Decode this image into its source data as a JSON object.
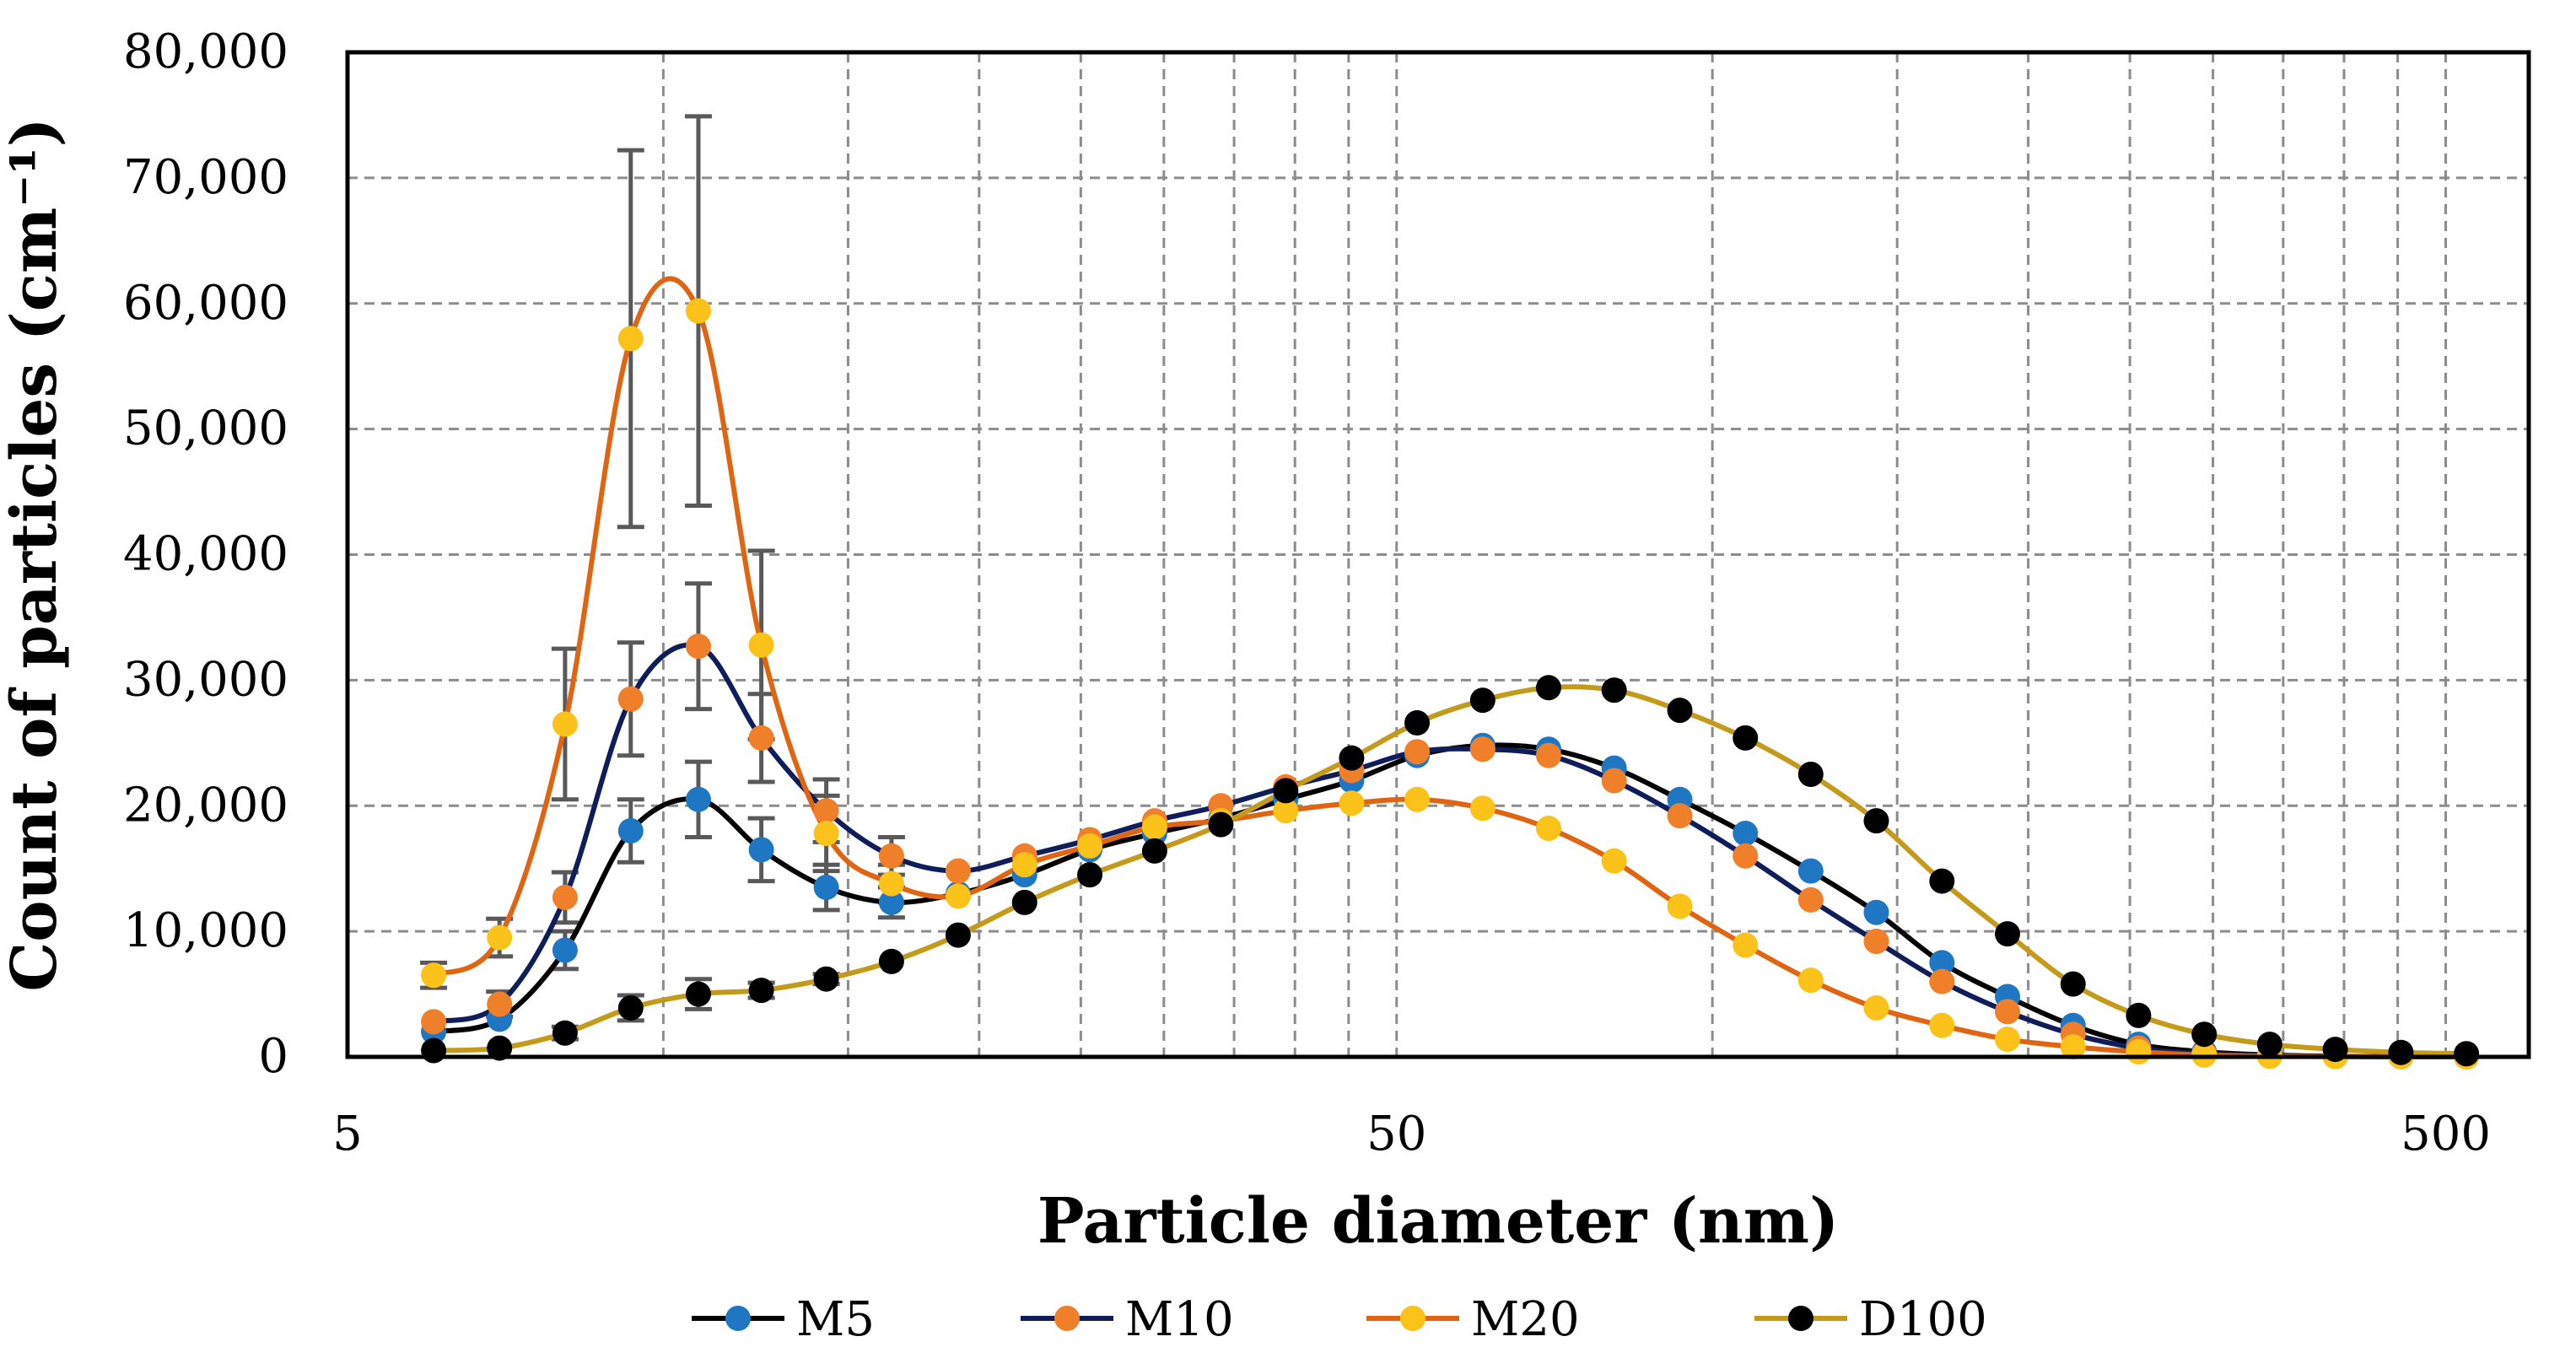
{
  "chart_data": {
    "type": "line",
    "title": "",
    "xlabel": "Particle diameter (nm)",
    "ylabel": "Count of particles (cm⁻¹)",
    "xscale": "log",
    "xlim": [
      5,
      600
    ],
    "ylim": [
      0,
      80000
    ],
    "x_ticks": [
      5,
      50,
      500
    ],
    "x_tick_labels": [
      "5",
      "50",
      "500"
    ],
    "y_ticks": [
      0,
      10000,
      20000,
      30000,
      40000,
      50000,
      60000,
      70000,
      80000
    ],
    "y_tick_labels": [
      "0",
      "10,000",
      "20,000",
      "30,000",
      "40,000",
      "50,000",
      "60,000",
      "70,000",
      "80,000"
    ],
    "grid": true,
    "legend_position": "bottom",
    "x": [
      6.04,
      6.98,
      8.06,
      9.31,
      10.8,
      12.4,
      14.3,
      16.5,
      19.1,
      22.1,
      25.5,
      29.4,
      34.0,
      39.2,
      45.3,
      52.3,
      60.4,
      69.8,
      80.6,
      93.1,
      107.5,
      124.1,
      143.3,
      165.5,
      191.1,
      220.7,
      254.8,
      294.3,
      339.8,
      392.4,
      453.2,
      523.3
    ],
    "series": [
      {
        "name": "M5",
        "color": "#1f77c4",
        "line_color": "#000000",
        "values": [
          2000,
          3000,
          8500,
          18000,
          20500,
          16500,
          13500,
          12300,
          13000,
          14500,
          16500,
          17800,
          19000,
          20500,
          22000,
          24000,
          24800,
          24500,
          23000,
          20500,
          17800,
          14800,
          11500,
          7500,
          4800,
          2500,
          1000,
          400,
          150,
          50,
          20,
          0
        ],
        "error": [
          null,
          null,
          1500,
          2500,
          3000,
          2500,
          1800,
          1200,
          null,
          null,
          null,
          null,
          null,
          null,
          null,
          null,
          null,
          null,
          null,
          null,
          null,
          null,
          null,
          null,
          null,
          null,
          null,
          null,
          null,
          null,
          null,
          null
        ]
      },
      {
        "name": "M10",
        "color": "#f07f2a",
        "line_color": "#0f1e5a",
        "values": [
          2800,
          4200,
          12700,
          28500,
          32700,
          25400,
          19600,
          16000,
          14800,
          16000,
          17300,
          18800,
          20000,
          21500,
          22800,
          24300,
          24500,
          24000,
          22000,
          19200,
          16000,
          12500,
          9200,
          6000,
          3600,
          1800,
          700,
          250,
          80,
          30,
          10,
          0
        ],
        "error": [
          null,
          1000,
          2000,
          4500,
          5000,
          3500,
          2500,
          1500,
          null,
          null,
          null,
          null,
          null,
          null,
          null,
          null,
          null,
          null,
          null,
          null,
          null,
          null,
          null,
          null,
          null,
          null,
          null,
          null,
          null,
          null,
          null,
          null
        ]
      },
      {
        "name": "M20",
        "color": "#fbc21a",
        "line_color": "#e06512",
        "values": [
          6500,
          9500,
          26500,
          57200,
          59400,
          32800,
          17800,
          13800,
          12800,
          15300,
          16800,
          18300,
          18800,
          19600,
          20200,
          20500,
          19800,
          18200,
          15600,
          12000,
          8900,
          6100,
          3900,
          2500,
          1400,
          800,
          400,
          150,
          50,
          20,
          10,
          0
        ],
        "error": [
          1000,
          1500,
          6000,
          15000,
          15500,
          7500,
          3000,
          1500,
          null,
          null,
          null,
          null,
          null,
          null,
          null,
          null,
          null,
          null,
          null,
          null,
          null,
          null,
          null,
          null,
          null,
          null,
          null,
          null,
          null,
          null,
          null,
          null
        ]
      },
      {
        "name": "D100",
        "color": "#000000",
        "line_color": "#c39a1a",
        "values": [
          500,
          700,
          1900,
          3900,
          5000,
          5300,
          6200,
          7600,
          9700,
          12300,
          14500,
          16400,
          18500,
          21200,
          23800,
          26600,
          28400,
          29400,
          29200,
          27600,
          25400,
          22500,
          18800,
          14000,
          9800,
          5800,
          3300,
          1800,
          1000,
          600,
          350,
          250
        ],
        "error": [
          null,
          null,
          500,
          1000,
          1200,
          600,
          400,
          null,
          null,
          null,
          null,
          null,
          null,
          null,
          null,
          null,
          null,
          null,
          null,
          null,
          null,
          null,
          null,
          null,
          null,
          null,
          null,
          null,
          null,
          null,
          null,
          null
        ]
      }
    ]
  }
}
